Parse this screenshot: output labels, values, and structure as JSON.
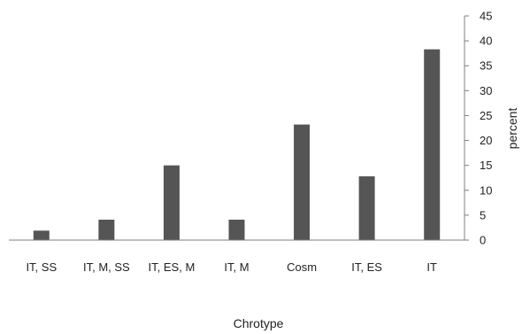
{
  "chart_data": {
    "type": "bar",
    "title": "",
    "xlabel": "Chrotype",
    "ylabel": "percent",
    "ylim": [
      0,
      45
    ],
    "yticks": [
      0,
      5,
      10,
      15,
      20,
      25,
      30,
      35,
      40,
      45
    ],
    "y_axis_side": "right",
    "grid": false,
    "legend": "none",
    "categories": [
      "IT, SS",
      "IT, M, SS",
      "IT, ES, M",
      "IT, M",
      "Cosm",
      "IT, ES",
      "IT"
    ],
    "values": [
      1.9,
      4.1,
      15.0,
      4.1,
      23.2,
      12.8,
      38.3
    ],
    "bar_color": "#555555",
    "axis_color": "#7f7f7f"
  }
}
